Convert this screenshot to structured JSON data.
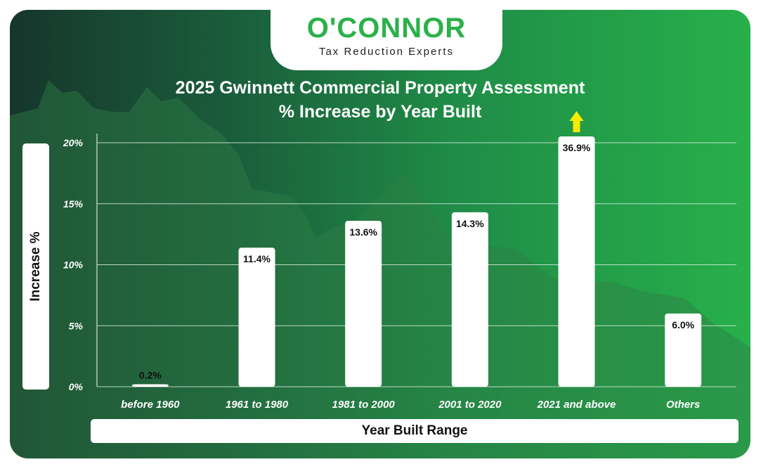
{
  "logo": {
    "brand": "O'CONNOR",
    "tagline": "Tax Reduction Experts"
  },
  "chart_data": {
    "type": "bar",
    "title": "2025 Gwinnett Commercial Property Assessment\n% Increase by Year Built",
    "title_lines": [
      "2025 Gwinnett Commercial Property Assessment",
      "% Increase by Year Built"
    ],
    "xlabel": "Year Built Range",
    "ylabel": "Increase %",
    "categories": [
      "before 1960",
      "1961 to 1980",
      "1981 to 2000",
      "2001 to 2020",
      "2021 and above",
      "Others"
    ],
    "values": [
      0.2,
      11.4,
      13.6,
      14.3,
      36.9,
      6.0
    ],
    "value_labels": [
      "0.2%",
      "11.4%",
      "13.6%",
      "14.3%",
      "36.9%",
      "6.0%"
    ],
    "ylim": [
      0,
      20
    ],
    "yticks": [
      0,
      5,
      10,
      15,
      20
    ],
    "ytick_labels": [
      "0%",
      "5%",
      "10%",
      "15%",
      "20%"
    ],
    "overflow_indicator": {
      "category": "2021 and above",
      "direction": "up",
      "color": "#f5ec00"
    },
    "grid": true,
    "bar_color": "#ffffff"
  }
}
